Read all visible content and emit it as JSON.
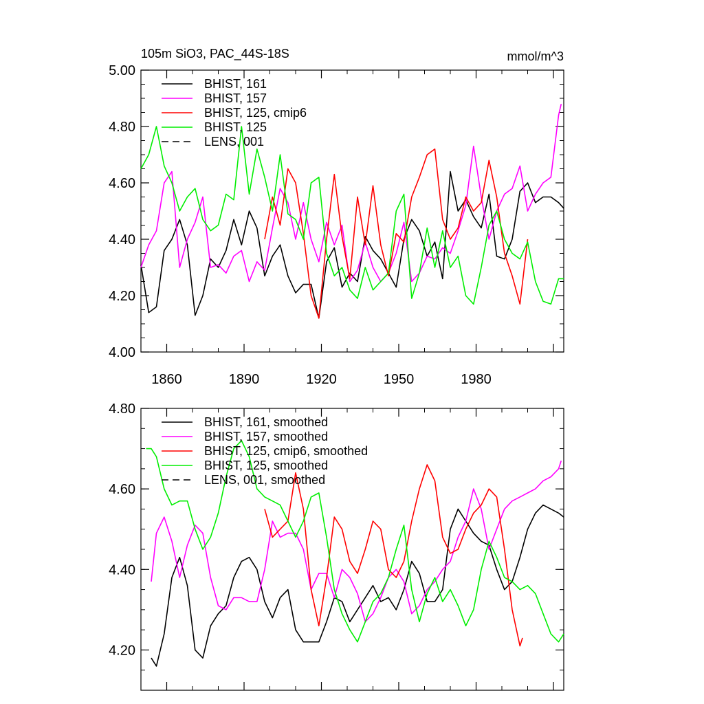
{
  "chart_data": [
    {
      "type": "line",
      "title": "105m SiO3, PAC_44S-18S",
      "units": "mmol/m^3",
      "ylim": [
        4.0,
        5.0
      ],
      "yticks": [
        "4.00",
        "4.20",
        "4.40",
        "4.60",
        "4.80",
        "5.00"
      ],
      "xlim": [
        1850,
        2014
      ],
      "xticks": [
        "1860",
        "1890",
        "1920",
        "1950",
        "1980"
      ],
      "legend_placement": "top-left",
      "grid": false,
      "series": [
        {
          "name": "BHIST, 161",
          "color": "#000000",
          "dash": "solid",
          "x": [
            1850,
            1853,
            1856,
            1859,
            1862,
            1865,
            1868,
            1871,
            1874,
            1877,
            1880,
            1883,
            1886,
            1889,
            1892,
            1895,
            1898,
            1901,
            1904,
            1907,
            1910,
            1913,
            1916,
            1919,
            1922,
            1925,
            1928,
            1931,
            1934,
            1937,
            1940,
            1943,
            1946,
            1949,
            1952,
            1955,
            1958,
            1961,
            1964,
            1967,
            1970,
            1973,
            1976,
            1979,
            1982,
            1985,
            1988,
            1991,
            1994,
            1997,
            2000,
            2003,
            2006,
            2009,
            2012,
            2014
          ],
          "values": [
            4.31,
            4.14,
            4.16,
            4.36,
            4.4,
            4.47,
            4.38,
            4.13,
            4.2,
            4.33,
            4.3,
            4.36,
            4.47,
            4.38,
            4.5,
            4.44,
            4.27,
            4.34,
            4.38,
            4.27,
            4.21,
            4.24,
            4.24,
            4.12,
            4.32,
            4.37,
            4.23,
            4.28,
            4.25,
            4.41,
            4.36,
            4.33,
            4.28,
            4.23,
            4.4,
            4.47,
            4.43,
            4.34,
            4.39,
            4.26,
            4.64,
            4.5,
            4.54,
            4.48,
            4.44,
            4.56,
            4.34,
            4.33,
            4.4,
            4.57,
            4.6,
            4.53,
            4.55,
            4.55,
            4.53,
            4.51
          ]
        },
        {
          "name": "BHIST, 157",
          "color": "#ff00ff",
          "dash": "solid",
          "x": [
            1850,
            1853,
            1856,
            1859,
            1862,
            1865,
            1868,
            1871,
            1874,
            1877,
            1880,
            1883,
            1886,
            1889,
            1892,
            1895,
            1898,
            1901,
            1904,
            1907,
            1910,
            1913,
            1916,
            1919,
            1922,
            1925,
            1928,
            1931,
            1934,
            1937,
            1940,
            1943,
            1946,
            1949,
            1952,
            1955,
            1958,
            1961,
            1964,
            1967,
            1970,
            1973,
            1976,
            1979,
            1982,
            1985,
            1988,
            1991,
            1994,
            1997,
            2000,
            2003,
            2006,
            2009,
            2012,
            2013
          ],
          "values": [
            4.3,
            4.38,
            4.43,
            4.6,
            4.64,
            4.3,
            4.4,
            4.46,
            4.55,
            4.3,
            4.31,
            4.28,
            4.34,
            4.36,
            4.25,
            4.32,
            4.29,
            4.44,
            4.58,
            4.53,
            4.4,
            4.53,
            4.4,
            4.32,
            4.46,
            4.38,
            4.45,
            4.25,
            4.29,
            4.39,
            4.3,
            4.25,
            4.28,
            4.35,
            4.46,
            4.25,
            4.28,
            4.34,
            4.33,
            4.37,
            4.35,
            4.43,
            4.52,
            4.73,
            4.55,
            4.4,
            4.5,
            4.56,
            4.58,
            4.66,
            4.5,
            4.56,
            4.6,
            4.62,
            4.84,
            4.88
          ]
        },
        {
          "name": "BHIST, 125, cmip6",
          "color": "#ff0000",
          "dash": "solid",
          "x": [
            1898,
            1901,
            1904,
            1907,
            1910,
            1913,
            1916,
            1919,
            1922,
            1925,
            1928,
            1931,
            1934,
            1937,
            1940,
            1943,
            1946,
            1949,
            1952,
            1955,
            1958,
            1961,
            1964,
            1967,
            1970,
            1973,
            1976,
            1979,
            1982,
            1985,
            1988,
            1991,
            1994,
            1997,
            2000
          ],
          "values": [
            4.4,
            4.55,
            4.45,
            4.65,
            4.6,
            4.42,
            4.2,
            4.12,
            4.4,
            4.63,
            4.41,
            4.26,
            4.55,
            4.38,
            4.59,
            4.38,
            4.27,
            4.42,
            4.39,
            4.55,
            4.62,
            4.7,
            4.72,
            4.47,
            4.4,
            4.44,
            4.55,
            4.5,
            4.53,
            4.68,
            4.55,
            4.35,
            4.27,
            4.17,
            4.4
          ]
        },
        {
          "name": "BHIST, 125",
          "color": "#00ee00",
          "dash": "solid",
          "x": [
            1850,
            1853,
            1856,
            1859,
            1862,
            1865,
            1868,
            1871,
            1874,
            1877,
            1880,
            1883,
            1886,
            1889,
            1892,
            1895,
            1898,
            1901,
            1904,
            1907,
            1910,
            1913,
            1916,
            1919,
            1922,
            1925,
            1928,
            1931,
            1934,
            1937,
            1940,
            1943,
            1946,
            1949,
            1952,
            1955,
            1958,
            1961,
            1964,
            1967,
            1970,
            1973,
            1976,
            1979,
            1982,
            1985,
            1988,
            1991,
            1994,
            1997,
            2000,
            2003,
            2006,
            2009,
            2012,
            2014
          ],
          "values": [
            4.65,
            4.7,
            4.8,
            4.66,
            4.6,
            4.5,
            4.55,
            4.58,
            4.47,
            4.43,
            4.45,
            4.56,
            4.54,
            4.8,
            4.56,
            4.72,
            4.62,
            4.5,
            4.7,
            4.49,
            4.47,
            4.4,
            4.6,
            4.62,
            4.35,
            4.27,
            4.3,
            4.22,
            4.19,
            4.3,
            4.22,
            4.25,
            4.28,
            4.5,
            4.56,
            4.19,
            4.28,
            4.44,
            4.3,
            4.43,
            4.3,
            4.34,
            4.2,
            4.17,
            4.3,
            4.45,
            4.5,
            4.4,
            4.35,
            4.33,
            4.39,
            4.25,
            4.18,
            4.17,
            4.26,
            4.26
          ]
        },
        {
          "name": "LENS, 001",
          "color": "#000000",
          "dash": "dashed",
          "x": [],
          "values": []
        }
      ]
    },
    {
      "type": "line",
      "ylim": [
        4.1,
        4.8
      ],
      "yticks": [
        "4.20",
        "4.40",
        "4.60",
        "4.80"
      ],
      "xlim": [
        1850,
        2014
      ],
      "xticks": [],
      "legend_placement": "top-left",
      "grid": false,
      "series": [
        {
          "name": "BHIST, 161, smoothed",
          "color": "#000000",
          "dash": "solid",
          "x": [
            1854,
            1856,
            1859,
            1862,
            1865,
            1868,
            1871,
            1874,
            1877,
            1880,
            1883,
            1886,
            1889,
            1892,
            1895,
            1898,
            1901,
            1904,
            1907,
            1910,
            1913,
            1916,
            1919,
            1922,
            1925,
            1928,
            1931,
            1934,
            1937,
            1940,
            1943,
            1946,
            1949,
            1952,
            1955,
            1958,
            1961,
            1964,
            1967,
            1970,
            1973,
            1976,
            1979,
            1982,
            1985,
            1988,
            1991,
            1994,
            1997,
            2000,
            2003,
            2006,
            2009,
            2012,
            2014
          ],
          "values": [
            4.18,
            4.16,
            4.24,
            4.38,
            4.43,
            4.36,
            4.2,
            4.18,
            4.26,
            4.29,
            4.31,
            4.38,
            4.42,
            4.43,
            4.4,
            4.32,
            4.28,
            4.33,
            4.35,
            4.25,
            4.22,
            4.22,
            4.22,
            4.27,
            4.33,
            4.32,
            4.27,
            4.3,
            4.33,
            4.36,
            4.32,
            4.33,
            4.3,
            4.35,
            4.42,
            4.39,
            4.32,
            4.32,
            4.35,
            4.5,
            4.55,
            4.52,
            4.49,
            4.47,
            4.46,
            4.4,
            4.35,
            4.37,
            4.43,
            4.5,
            4.54,
            4.56,
            4.55,
            4.54,
            4.53
          ]
        },
        {
          "name": "BHIST, 157, smoothed",
          "color": "#ff00ff",
          "dash": "solid",
          "x": [
            1854,
            1856,
            1859,
            1862,
            1865,
            1868,
            1871,
            1874,
            1877,
            1880,
            1883,
            1886,
            1889,
            1892,
            1895,
            1898,
            1901,
            1904,
            1907,
            1910,
            1913,
            1916,
            1919,
            1922,
            1925,
            1928,
            1931,
            1934,
            1937,
            1940,
            1943,
            1946,
            1949,
            1952,
            1955,
            1958,
            1961,
            1964,
            1967,
            1970,
            1973,
            1976,
            1979,
            1982,
            1985,
            1988,
            1991,
            1994,
            1997,
            2000,
            2003,
            2006,
            2009,
            2012,
            2013
          ],
          "values": [
            4.37,
            4.49,
            4.53,
            4.47,
            4.38,
            4.46,
            4.51,
            4.49,
            4.38,
            4.31,
            4.3,
            4.33,
            4.33,
            4.32,
            4.32,
            4.4,
            4.52,
            4.48,
            4.49,
            4.49,
            4.45,
            4.35,
            4.39,
            4.39,
            4.33,
            4.4,
            4.38,
            4.34,
            4.27,
            4.29,
            4.33,
            4.38,
            4.4,
            4.37,
            4.29,
            4.31,
            4.35,
            4.37,
            4.4,
            4.42,
            4.48,
            4.52,
            4.6,
            4.55,
            4.45,
            4.5,
            4.55,
            4.57,
            4.58,
            4.59,
            4.6,
            4.62,
            4.63,
            4.65,
            4.67
          ]
        },
        {
          "name": "BHIST, 125, cmip6, smoothed",
          "color": "#ff0000",
          "dash": "solid",
          "x": [
            1898,
            1901,
            1904,
            1907,
            1910,
            1913,
            1916,
            1919,
            1922,
            1925,
            1928,
            1931,
            1934,
            1937,
            1940,
            1943,
            1946,
            1949,
            1952,
            1955,
            1958,
            1961,
            1964,
            1967,
            1970,
            1973,
            1976,
            1979,
            1982,
            1985,
            1988,
            1991,
            1994,
            1997,
            1998
          ],
          "values": [
            4.55,
            4.48,
            4.5,
            4.52,
            4.64,
            4.55,
            4.35,
            4.26,
            4.38,
            4.53,
            4.5,
            4.42,
            4.39,
            4.45,
            4.52,
            4.5,
            4.4,
            4.38,
            4.42,
            4.52,
            4.6,
            4.66,
            4.62,
            4.48,
            4.44,
            4.45,
            4.5,
            4.54,
            4.56,
            4.6,
            4.58,
            4.45,
            4.3,
            4.21,
            4.23
          ]
        },
        {
          "name": "BHIST, 125, smoothed",
          "color": "#00ee00",
          "dash": "solid",
          "x": [
            1852,
            1854,
            1856,
            1859,
            1862,
            1865,
            1868,
            1871,
            1874,
            1877,
            1880,
            1883,
            1886,
            1889,
            1892,
            1895,
            1898,
            1901,
            1904,
            1907,
            1910,
            1913,
            1916,
            1919,
            1922,
            1925,
            1928,
            1931,
            1934,
            1937,
            1940,
            1943,
            1946,
            1949,
            1952,
            1955,
            1958,
            1961,
            1964,
            1967,
            1970,
            1973,
            1976,
            1979,
            1982,
            1985,
            1988,
            1991,
            1994,
            1997,
            2000,
            2003,
            2006,
            2009,
            2012,
            2014
          ],
          "values": [
            4.7,
            4.7,
            4.68,
            4.6,
            4.56,
            4.57,
            4.57,
            4.5,
            4.45,
            4.48,
            4.54,
            4.63,
            4.7,
            4.72,
            4.68,
            4.6,
            4.58,
            4.57,
            4.56,
            4.52,
            4.48,
            4.52,
            4.58,
            4.59,
            4.48,
            4.35,
            4.29,
            4.25,
            4.22,
            4.27,
            4.32,
            4.34,
            4.38,
            4.45,
            4.51,
            4.35,
            4.27,
            4.34,
            4.38,
            4.32,
            4.35,
            4.31,
            4.26,
            4.3,
            4.4,
            4.47,
            4.43,
            4.38,
            4.37,
            4.35,
            4.36,
            4.34,
            4.29,
            4.24,
            4.22,
            4.24
          ]
        },
        {
          "name": "LENS, 001, smoothed",
          "color": "#000000",
          "dash": "dashed",
          "x": [],
          "values": []
        }
      ]
    }
  ]
}
